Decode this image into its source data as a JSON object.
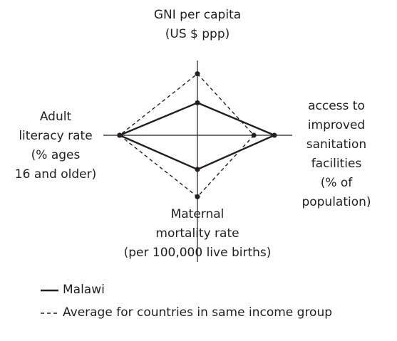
{
  "chart_data": {
    "type": "radar",
    "categories": [
      "GNI per capita\n(US $ ppp)",
      "access to\nimproved\nsanitation\nfacilities\n(% of population)",
      "Maternal\nmortality rate\n(per 100,000 live births)",
      "Adult\nliteracy rate\n(% ages\n16 and older)"
    ],
    "series": [
      {
        "name": "Malawi",
        "color": "#231f20",
        "dashed": false,
        "values": [
          0.38,
          0.9,
          0.4,
          0.91
        ]
      },
      {
        "name": "Average for countries in same income group",
        "color": "#231f20",
        "dashed": true,
        "values": [
          0.72,
          0.66,
          0.72,
          0.91
        ]
      }
    ]
  }
}
